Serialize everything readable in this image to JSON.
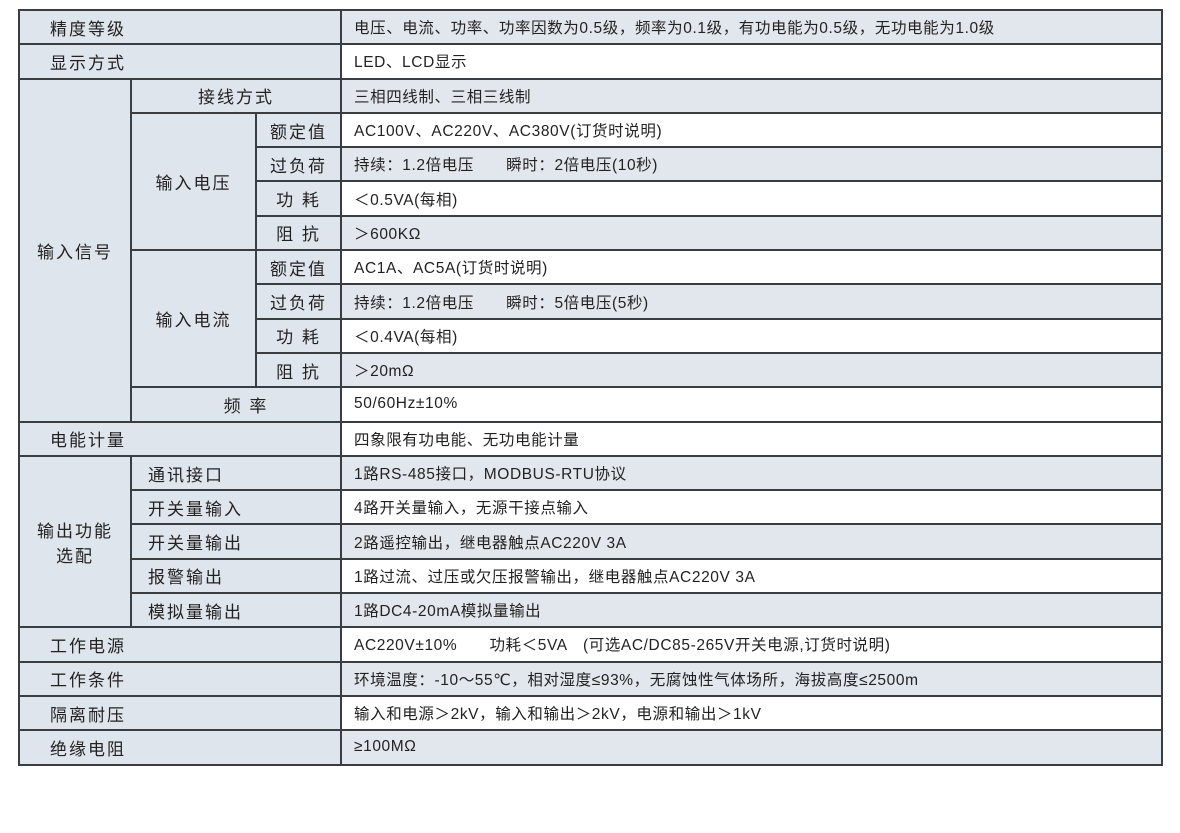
{
  "rows": {
    "accuracy": {
      "label": "精度等级",
      "value": "电压、电流、功率、功率因数为0.5级，频率为0.1级，有功电能为0.5级，无功电能为1.0级"
    },
    "display": {
      "label": "显示方式",
      "value": "LED、LCD显示"
    },
    "input_signal": {
      "label": "输入信号",
      "wiring": {
        "label": "接线方式",
        "value": "三相四线制、三相三线制"
      },
      "voltage": {
        "label": "输入电压",
        "rated": {
          "label": "额定值",
          "value": "AC100V、AC220V、AC380V(订货时说明)"
        },
        "overload": {
          "label": "过负荷",
          "value": "持续：1.2倍电压　　瞬时：2倍电压(10秒)"
        },
        "power": {
          "label": "功 耗",
          "value": "＜0.5VA(每相)"
        },
        "impedance": {
          "label": "阻 抗",
          "value": "＞600KΩ"
        }
      },
      "current": {
        "label": "输入电流",
        "rated": {
          "label": "额定值",
          "value": "AC1A、AC5A(订货时说明)"
        },
        "overload": {
          "label": "过负荷",
          "value": "持续：1.2倍电压　　瞬时：5倍电压(5秒)"
        },
        "power": {
          "label": "功 耗",
          "value": "＜0.4VA(每相)"
        },
        "impedance": {
          "label": "阻 抗",
          "value": "＞20mΩ"
        }
      },
      "frequency": {
        "label": "频 率",
        "value": "50/60Hz±10%"
      }
    },
    "energy": {
      "label": "电能计量",
      "value": "四象限有功电能、无功电能计量"
    },
    "output": {
      "label_line1": "输出功能",
      "label_line2": "选配",
      "comm": {
        "label": "通讯接口",
        "value": "1路RS-485接口，MODBUS-RTU协议"
      },
      "switch_in": {
        "label": "开关量输入",
        "value": "4路开关量输入，无源干接点输入"
      },
      "switch_out": {
        "label": "开关量输出",
        "value": "2路遥控输出，继电器触点AC220V 3A"
      },
      "alarm": {
        "label": "报警输出",
        "value": "1路过流、过压或欠压报警输出，继电器触点AC220V 3A"
      },
      "analog": {
        "label": "模拟量输出",
        "value": "1路DC4-20mA模拟量输出"
      }
    },
    "power_supply": {
      "label": "工作电源",
      "value": "AC220V±10%　　功耗＜5VA　(可选AC/DC85-265V开关电源,订货时说明)"
    },
    "conditions": {
      "label": "工作条件",
      "value": "环境温度：-10～55℃，相对湿度≤93%，无腐蚀性气体场所，海拔高度≤2500m"
    },
    "isolation": {
      "label": "隔离耐压",
      "value": "输入和电源＞2kV，输入和输出＞2kV，电源和输出＞1kV"
    },
    "insulation": {
      "label": "绝缘电阻",
      "value": "≥100MΩ"
    }
  },
  "colors": {
    "label_bg": "#dfe5ec",
    "shaded_value_bg": "#e2e7ed",
    "border": "#3a3d42"
  }
}
